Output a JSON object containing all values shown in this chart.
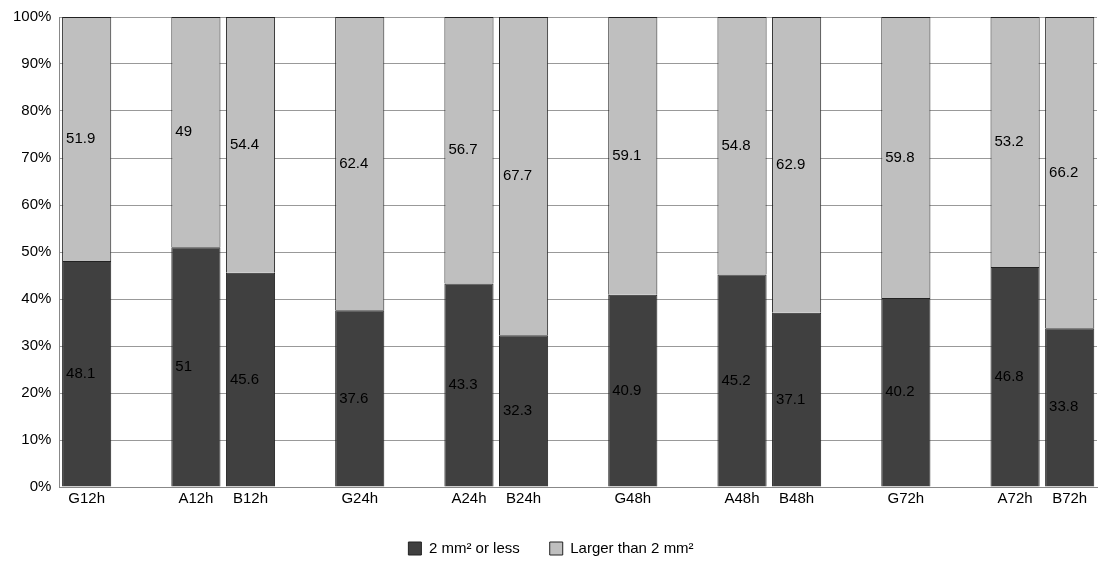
{
  "chart_data": {
    "type": "bar",
    "stacked": true,
    "categories": [
      "G12h",
      null,
      "A12h",
      "B12h",
      null,
      "G24h",
      null,
      "A24h",
      "B24h",
      null,
      "G48h",
      null,
      "A48h",
      "B48h",
      null,
      "G72h",
      null,
      "A72h",
      "B72h"
    ],
    "series": [
      {
        "name": "2 mm² or less",
        "color": "#404040",
        "values": [
          48.1,
          null,
          51,
          45.6,
          null,
          37.6,
          null,
          43.3,
          32.3,
          null,
          40.9,
          null,
          45.2,
          37.1,
          null,
          40.2,
          null,
          46.8,
          33.8
        ]
      },
      {
        "name": "Larger than 2 mm²",
        "color": "#bfbfbf",
        "values": [
          51.9,
          null,
          49,
          54.4,
          null,
          62.4,
          null,
          56.7,
          67.7,
          null,
          59.1,
          null,
          54.8,
          62.9,
          null,
          59.8,
          null,
          53.2,
          66.2
        ]
      }
    ],
    "ylim": [
      0,
      100
    ],
    "yticks": [
      {
        "value": 0,
        "label": "0%"
      },
      {
        "value": 10,
        "label": "10%"
      },
      {
        "value": 20,
        "label": "20%"
      },
      {
        "value": 30,
        "label": "30%"
      },
      {
        "value": 40,
        "label": "40%"
      },
      {
        "value": 50,
        "label": "50%"
      },
      {
        "value": 60,
        "label": "60%"
      },
      {
        "value": 70,
        "label": "70%"
      },
      {
        "value": 80,
        "label": "80%"
      },
      {
        "value": 90,
        "label": "90%"
      },
      {
        "value": 100,
        "label": "100%"
      }
    ],
    "grid": "y",
    "legend": "bottom",
    "data_labels": true
  }
}
